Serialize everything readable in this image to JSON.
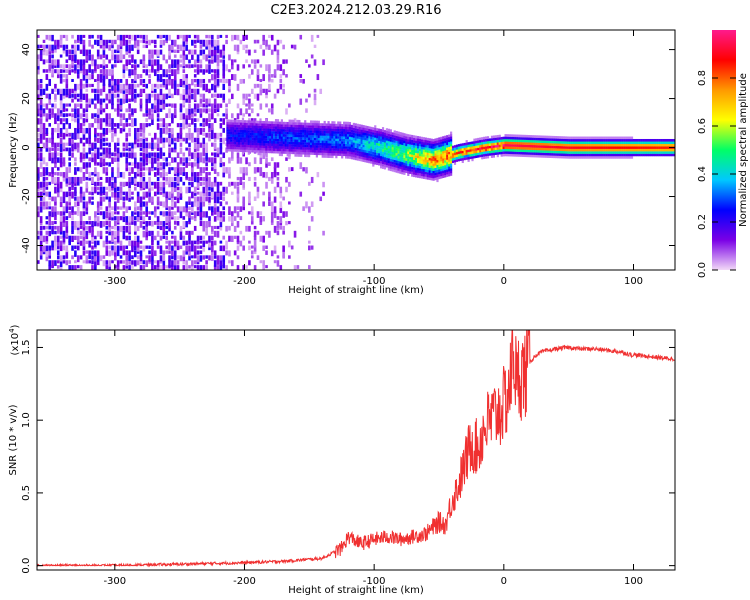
{
  "title": "C2E3.2024.212.03.29.R16",
  "chart_data": [
    {
      "type": "heatmap",
      "title": "C2E3.2024.212.03.29.R16",
      "xlabel": "Height of straight line (km)",
      "ylabel": "Frequency (Hz)",
      "xlim": [
        -360,
        132
      ],
      "ylim": [
        -50,
        48
      ],
      "xticks": [
        -300,
        -200,
        -100,
        0,
        100
      ],
      "yticks": [
        40,
        20,
        0,
        -20,
        -40
      ],
      "colorbar": {
        "label": "Normalized spectral amplitude",
        "range": [
          0,
          1
        ],
        "ticks": [
          0.0,
          0.2,
          0.4,
          0.6,
          0.8
        ],
        "colormap": [
          "#f2d9f7",
          "#7a00e6",
          "#0000ff",
          "#00c8ff",
          "#00ff66",
          "#ffff00",
          "#ff9900",
          "#ff0000",
          "#ff1a8c"
        ]
      },
      "ridge": {
        "description_points": [
          {
            "x": -215,
            "y": 5,
            "amp": 0.25
          },
          {
            "x": -170,
            "y": 4,
            "amp": 0.3
          },
          {
            "x": -120,
            "y": 3,
            "amp": 0.35
          },
          {
            "x": -95,
            "y": 0,
            "amp": 0.5
          },
          {
            "x": -75,
            "y": -3,
            "amp": 0.6
          },
          {
            "x": -55,
            "y": -5,
            "amp": 0.8
          },
          {
            "x": -35,
            "y": -2,
            "amp": 0.85
          },
          {
            "x": -15,
            "y": 0,
            "amp": 0.95
          },
          {
            "x": 0,
            "y": 1,
            "amp": 0.95
          },
          {
            "x": 50,
            "y": 0,
            "amp": 0.9
          },
          {
            "x": 132,
            "y": 0,
            "amp": 0.85
          }
        ]
      }
    },
    {
      "type": "line",
      "xlabel": "Height of straight line (km)",
      "ylabel": "SNR (10 * v/v)",
      "yscale_note": "(x10",
      "yscale_exp": "4",
      "ylabel_full": "SNR (10 * v/v)",
      "xlim": [
        -360,
        132
      ],
      "ylim": [
        -0.03,
        1.62
      ],
      "xticks": [
        -300,
        -200,
        -100,
        0,
        100
      ],
      "yticks": [
        0.0,
        0.5,
        1.0,
        1.5
      ],
      "color": "#f03030",
      "series": [
        {
          "x": [
            -360,
            -300,
            -250,
            -200,
            -170,
            -140,
            -125,
            -120,
            -110,
            -100,
            -90,
            -80,
            -70,
            -60,
            -50,
            -45,
            -40,
            -35,
            -30,
            -25,
            -20,
            -15,
            -10,
            -5,
            0,
            5,
            8,
            10,
            12,
            15,
            20,
            25,
            30,
            40,
            50,
            60,
            70,
            80,
            90,
            98,
            100,
            110,
            120,
            132
          ],
          "y": [
            0.0,
            0.0,
            0.01,
            0.02,
            0.03,
            0.05,
            0.12,
            0.2,
            0.15,
            0.18,
            0.2,
            0.18,
            0.2,
            0.22,
            0.3,
            0.28,
            0.45,
            0.55,
            0.7,
            0.85,
            0.8,
            0.95,
            1.0,
            1.05,
            1.1,
            1.25,
            1.5,
            1.2,
            1.35,
            1.3,
            1.4,
            1.45,
            1.47,
            1.49,
            1.5,
            1.49,
            1.49,
            1.48,
            1.47,
            1.45,
            1.45,
            1.44,
            1.43,
            1.42
          ]
        }
      ]
    }
  ]
}
